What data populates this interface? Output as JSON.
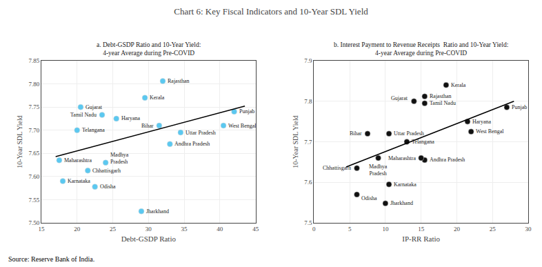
{
  "title": "Chart 6: Key Fiscal Indicators and 10-Year SDL Yield",
  "source": "Source: Reserve Bank of India.",
  "chart_data": [
    {
      "type": "scatter",
      "title": "a. Debt-GSDP Ratio and 10-Year Yield:\n4-year Average during Pre-COVID",
      "xlabel": "Debt-GSDP Ratio",
      "ylabel": "10-Year SDL Yield",
      "xlim": [
        15,
        45
      ],
      "ylim": [
        7.5,
        7.85
      ],
      "xticks": [
        15,
        20,
        25,
        30,
        35,
        40,
        45
      ],
      "yticks": [
        {
          "value": 7.5,
          "label": "7.50"
        },
        7.55,
        {
          "value": 7.6,
          "label": "7.60"
        },
        7.65,
        {
          "value": 7.7,
          "label": "7.70"
        },
        7.75,
        {
          "value": 7.8,
          "label": "7.80"
        },
        7.85
      ],
      "grid": true,
      "series": [
        {
          "type": "scatter",
          "color": "#5bc8f0",
          "x": [
            32.0,
            29.5,
            20.5,
            23.5,
            25.5,
            31.5,
            42.0,
            20.0,
            34.5,
            40.5,
            33.0,
            17.5,
            24.0,
            21.5,
            18.0,
            22.5,
            29.0
          ],
          "values": [
            7.806,
            7.77,
            7.75,
            7.733,
            7.725,
            7.71,
            7.74,
            7.7,
            7.695,
            7.71,
            7.67,
            7.635,
            7.63,
            7.613,
            7.59,
            7.578,
            7.525
          ],
          "labels": [
            "Rajasthan",
            "Kerala",
            "Gujarat",
            "Tamil Nadu",
            "Haryana",
            "Bihar",
            "Punjab",
            "Telangana",
            "Uttar Pradesh",
            "West Bengal",
            "Andhra Pradesh",
            "Maharashtra",
            "Madhya\nPradesh",
            "Chhattisgarh",
            "Karnataka",
            "Odisha",
            "Jharkhand"
          ]
        },
        {
          "type": "line",
          "color": "black",
          "x": [
            17.0,
            43.5
          ],
          "values": [
            7.643,
            7.752
          ]
        }
      ]
    },
    {
      "type": "scatter",
      "title": "b. Interest Payment to Revenue Receipts  Ratio and 10-Year Yield:\n4-year Average during Pre-COVID",
      "xlabel": "IP-RR Ratio",
      "ylabel": "10-Year SDL Yield",
      "xlim": [
        0,
        30
      ],
      "ylim": [
        7.5,
        7.9
      ],
      "xticks": [
        0,
        5,
        10,
        15,
        20,
        25,
        30
      ],
      "yticks": [
        7.5,
        7.6,
        7.7,
        7.8,
        7.9
      ],
      "grid": true,
      "series": [
        {
          "type": "scatter",
          "color": "#111111",
          "x": [
            15.5,
            18.5,
            14.0,
            15.5,
            27.0,
            21.5,
            10.5,
            7.5,
            13.0,
            22.0,
            15.5,
            15.0,
            9.0,
            6.0,
            10.5,
            6.0,
            10.0
          ],
          "values": [
            7.812,
            7.84,
            7.8,
            7.795,
            7.785,
            7.75,
            7.72,
            7.72,
            7.7,
            7.725,
            7.655,
            7.66,
            7.66,
            7.635,
            7.595,
            7.57,
            7.548
          ],
          "labels": [
            "Rajasthan",
            "Kerala",
            "Gujarat",
            "Tamil Nadu",
            "Punjab",
            "Haryana",
            "Uttar Pradesh",
            "Bihar",
            "Telangana",
            "West Bengal",
            "Andhra Pradesh",
            "Maharashtra",
            "Madhya\nPradesh",
            "Chhattisgarh",
            "Karnataka",
            "Odisha",
            "Jharkhand"
          ]
        },
        {
          "type": "line",
          "color": "black",
          "x": [
            4.5,
            28.0
          ],
          "values": [
            7.638,
            7.8
          ]
        }
      ]
    }
  ]
}
